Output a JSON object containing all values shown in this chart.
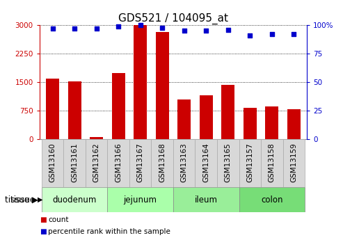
{
  "title": "GDS521 / 104095_at",
  "samples": [
    "GSM13160",
    "GSM13161",
    "GSM13162",
    "GSM13166",
    "GSM13167",
    "GSM13168",
    "GSM13163",
    "GSM13164",
    "GSM13165",
    "GSM13157",
    "GSM13158",
    "GSM13159"
  ],
  "counts": [
    1600,
    1530,
    50,
    1750,
    3000,
    2820,
    1050,
    1150,
    1430,
    820,
    870,
    790
  ],
  "percentiles": [
    97,
    97,
    97,
    99,
    100,
    98,
    95,
    95,
    96,
    91,
    92,
    92
  ],
  "tissues": [
    {
      "label": "duodenum",
      "start": 0,
      "end": 3
    },
    {
      "label": "jejunum",
      "start": 3,
      "end": 6
    },
    {
      "label": "ileum",
      "start": 6,
      "end": 9
    },
    {
      "label": "colon",
      "start": 9,
      "end": 12
    }
  ],
  "tissue_colors": [
    "#ccffcc",
    "#aaffaa",
    "#99ee99",
    "#77dd77"
  ],
  "bar_color": "#cc0000",
  "dot_color": "#0000cc",
  "ylim_left": [
    0,
    3000
  ],
  "ylim_right": [
    0,
    100
  ],
  "yticks_left": [
    0,
    750,
    1500,
    2250,
    3000
  ],
  "yticks_right": [
    0,
    25,
    50,
    75,
    100
  ],
  "grid_values": [
    750,
    1500,
    2250,
    3000
  ],
  "tick_color_left": "#cc0000",
  "tick_color_right": "#0000cc",
  "bg_color_fig": "#ffffff",
  "title_fontsize": 11,
  "tick_fontsize": 7.5,
  "label_fontsize": 8,
  "tissue_fontsize": 8.5,
  "legend_fontsize": 7.5
}
